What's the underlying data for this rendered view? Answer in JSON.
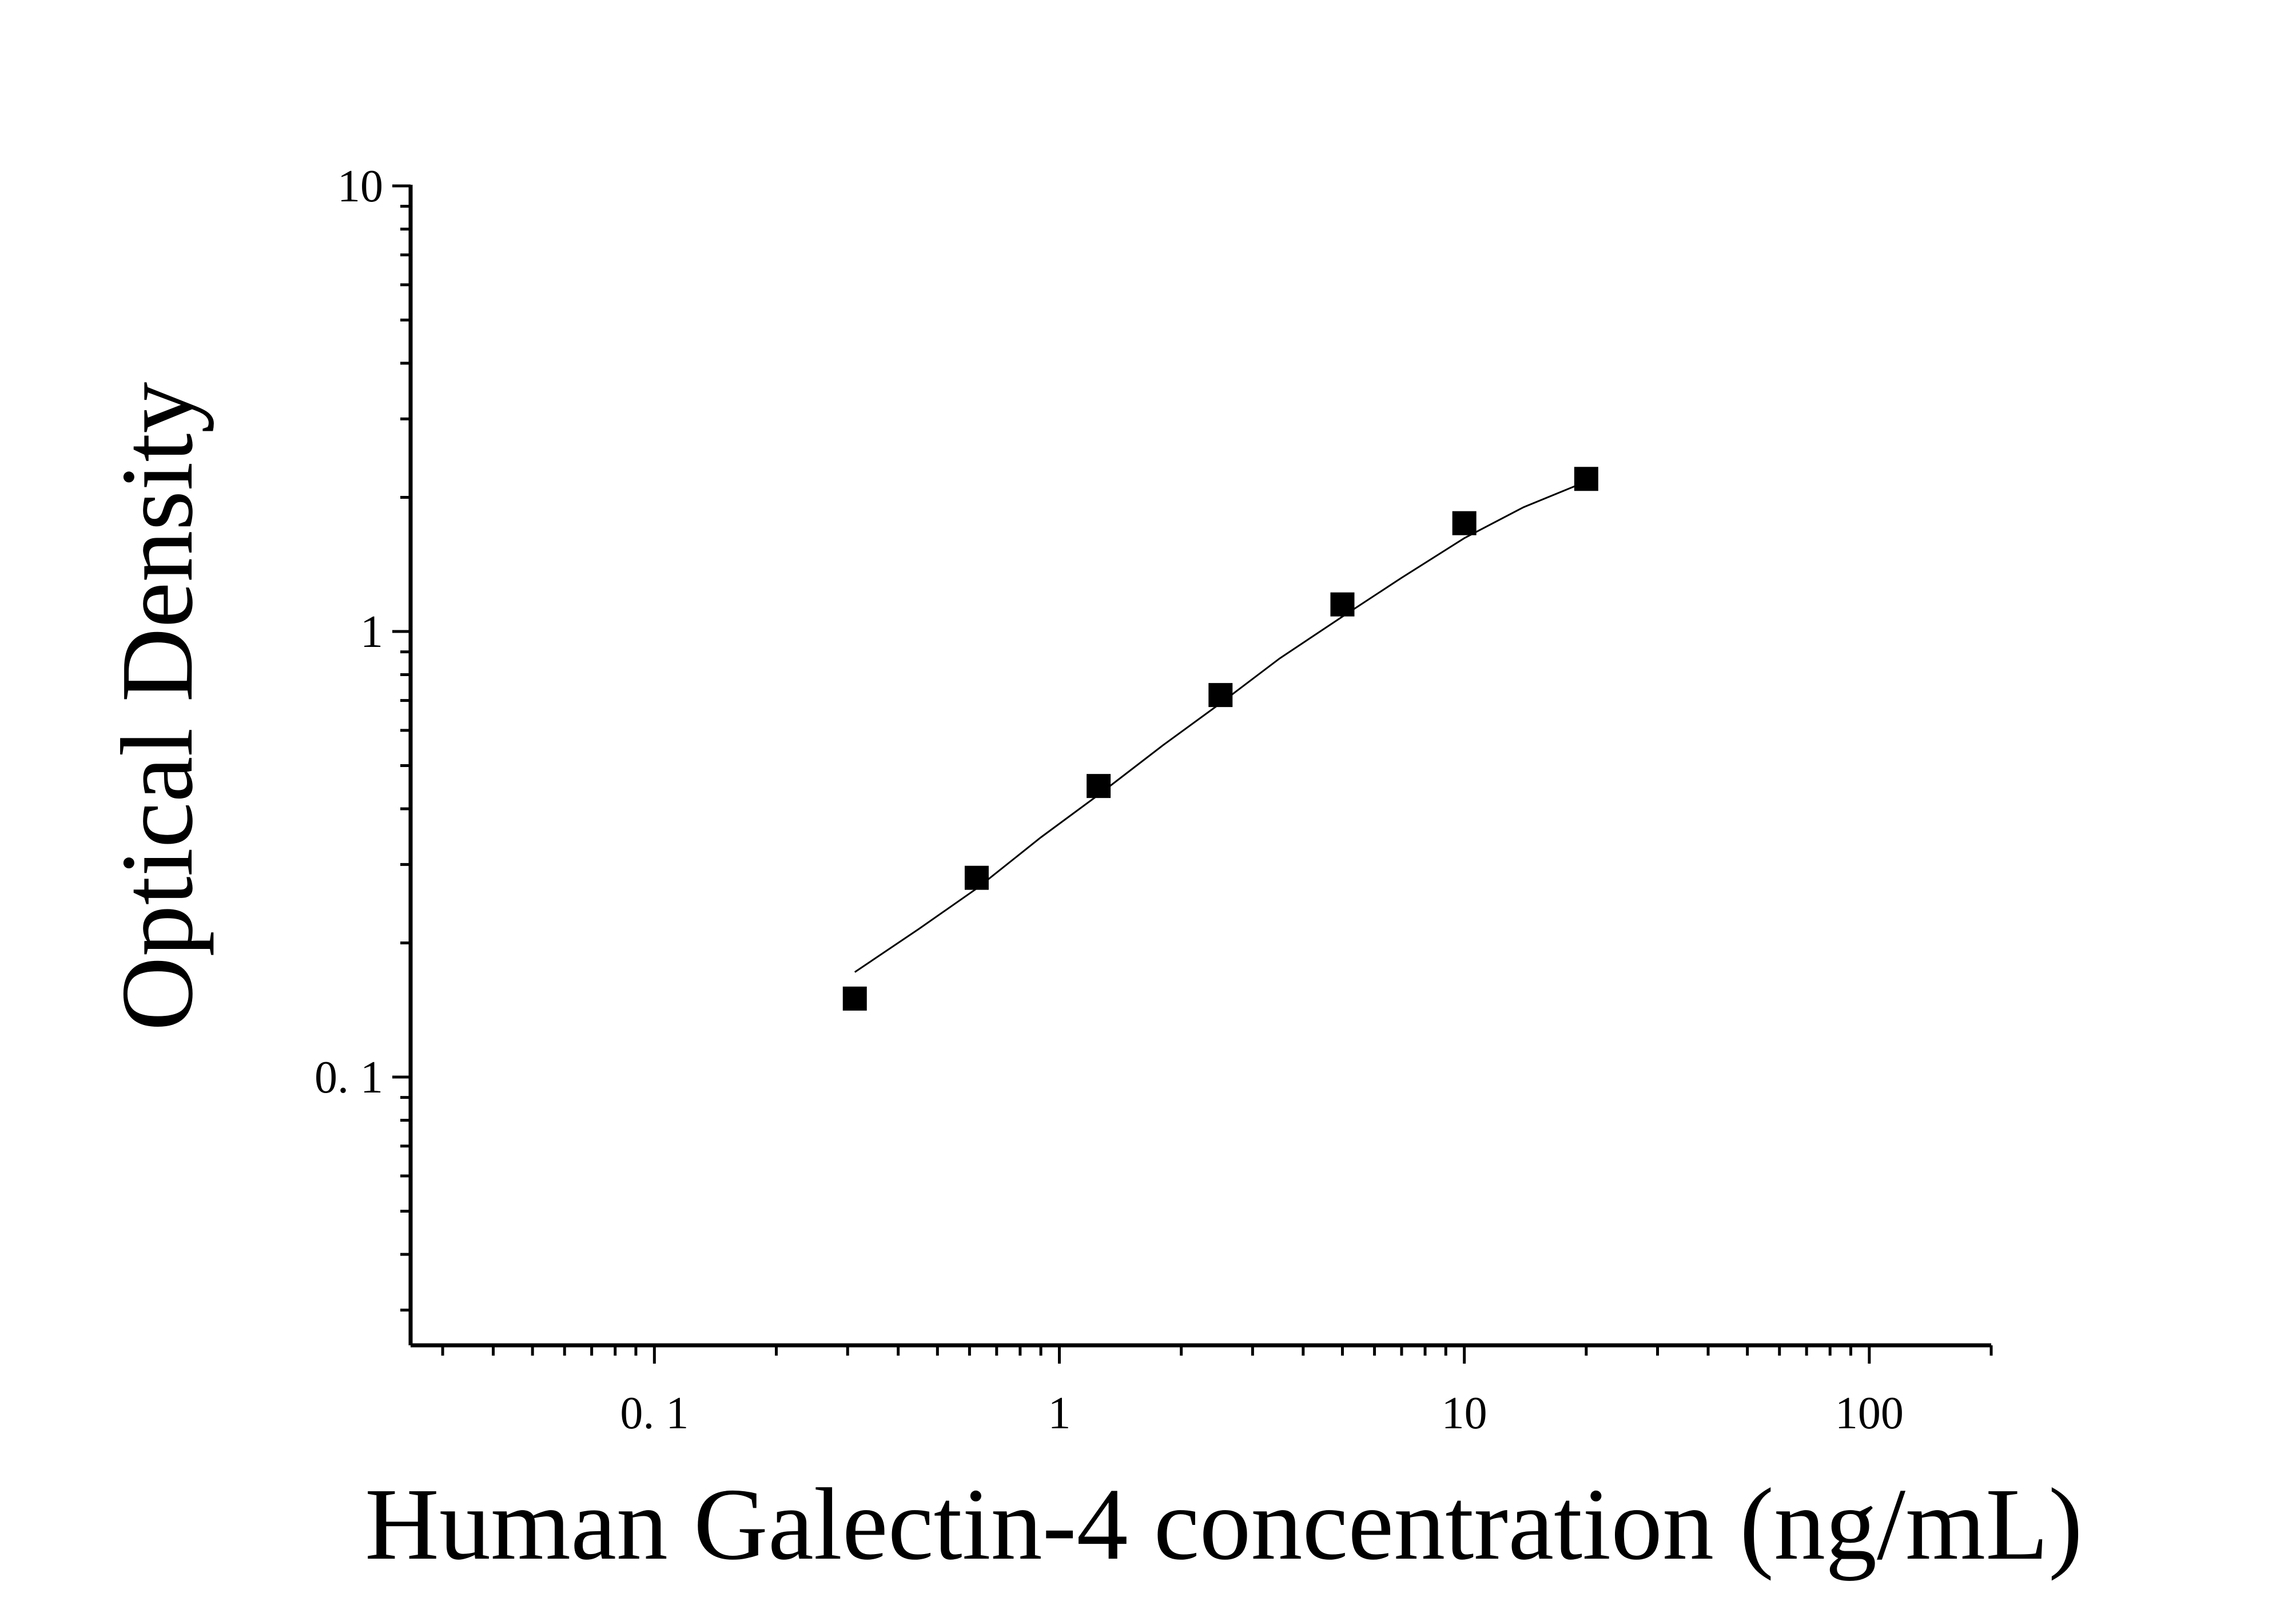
{
  "chart_data": {
    "type": "scatter",
    "xlabel": "Human Galectin-4 concentration (ng/mL)",
    "ylabel": "Optical Density",
    "x_scale": "log",
    "y_scale": "log",
    "xlim": [
      0.025,
      200
    ],
    "ylim": [
      0.025,
      10
    ],
    "x_tick_labels": [
      "0. 1",
      "1",
      "10",
      "100"
    ],
    "y_tick_labels": [
      "0. 1",
      "1",
      "10"
    ],
    "grid": false,
    "marker": "square",
    "marker_color": "#000000",
    "series": [
      {
        "x": [
          0.3125,
          0.625,
          1.25,
          2.5,
          5,
          10,
          20
        ],
        "y": [
          0.15,
          0.28,
          0.45,
          0.72,
          1.15,
          1.75,
          2.2
        ]
      }
    ],
    "fit_curve": {
      "x": [
        0.3125,
        0.45,
        0.625,
        0.9,
        1.25,
        1.8,
        2.5,
        3.5,
        5,
        7,
        10,
        14,
        20
      ],
      "y": [
        0.172,
        0.215,
        0.265,
        0.345,
        0.43,
        0.555,
        0.69,
        0.87,
        1.08,
        1.32,
        1.62,
        1.9,
        2.17
      ]
    }
  }
}
